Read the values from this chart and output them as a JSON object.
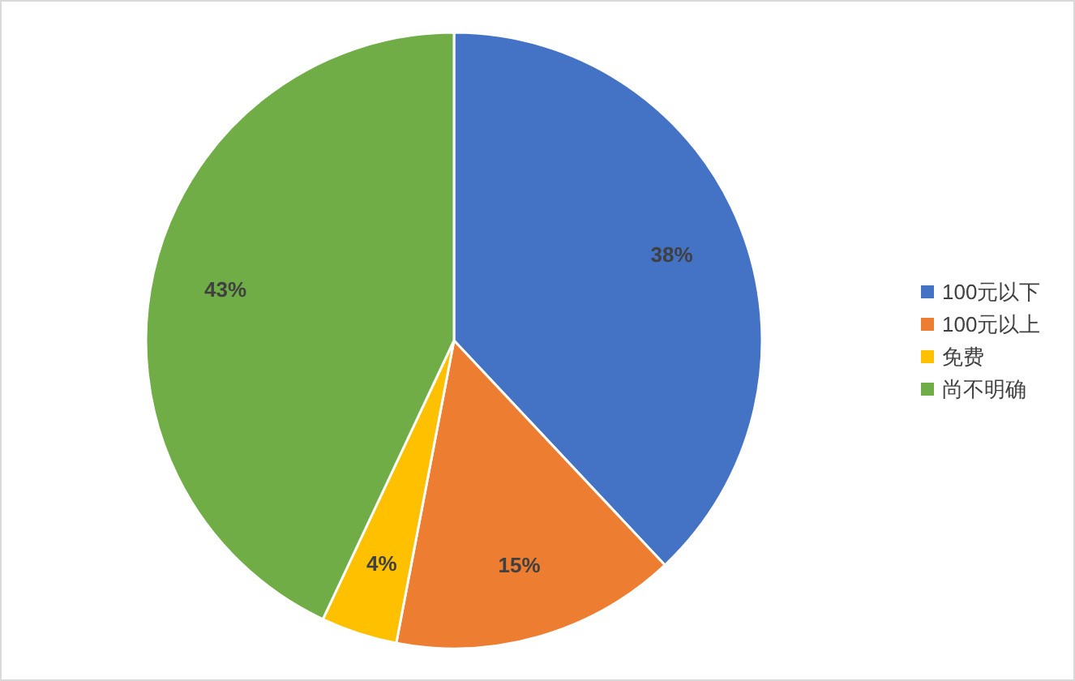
{
  "chart_data": {
    "type": "pie",
    "categories": [
      "100元以下",
      "100元以上",
      "免费",
      "尚不明确"
    ],
    "values": [
      38,
      15,
      4,
      43
    ],
    "colors": [
      "#4472c4",
      "#ed7d31",
      "#ffc000",
      "#70ad47"
    ],
    "value_labels": [
      "38%",
      "15%",
      "4%",
      "43%"
    ],
    "legend": "right"
  }
}
